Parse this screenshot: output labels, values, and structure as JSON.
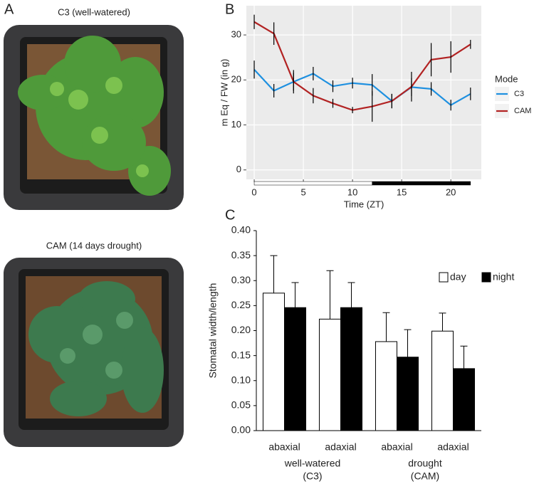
{
  "figure": {
    "panel_labels": [
      "A",
      "B",
      "C"
    ],
    "photos": [
      {
        "title": "C3 (well-watered)"
      },
      {
        "title": "CAM (14 days drought)"
      }
    ]
  },
  "chart_data": [
    {
      "type": "line",
      "x_label": "Time (ZT)",
      "y_label": "m Eq / FW (in g)",
      "x": [
        0,
        2,
        4,
        6,
        8,
        10,
        12,
        14,
        16,
        18,
        20,
        22
      ],
      "series": [
        {
          "name": "C3",
          "color": "#1e90e0",
          "values": [
            22.3,
            17.6,
            19.6,
            21.4,
            18.6,
            19.3,
            18.9,
            15.3,
            18.4,
            18.0,
            14.4,
            16.9
          ],
          "errors": [
            2.0,
            1.5,
            2.0,
            1.5,
            1.3,
            1.2,
            2.4,
            1.6,
            2.0,
            1.5,
            1.2,
            1.4
          ]
        },
        {
          "name": "CAM",
          "color": "#b22222",
          "values": [
            32.9,
            30.3,
            19.6,
            16.5,
            14.8,
            13.3,
            14.1,
            15.3,
            18.5,
            24.5,
            25.1,
            27.9
          ],
          "errors": [
            1.6,
            2.5,
            2.6,
            1.7,
            1.0,
            0.7,
            3.4,
            1.6,
            3.3,
            3.7,
            3.5,
            1.0
          ]
        }
      ],
      "light_periods": [
        {
          "start": 0,
          "end": 12,
          "color": "#ffffff"
        },
        {
          "start": 12,
          "end": 22,
          "color": "#000000"
        }
      ],
      "legend_title": "Mode",
      "legend": "right",
      "grid": true,
      "xlim": [
        -0.8,
        23.1
      ],
      "xticks": [
        0,
        5,
        10,
        15,
        20
      ],
      "ylim": [
        -2.1,
        36.5
      ],
      "yticks": [
        0,
        10,
        20,
        30
      ]
    },
    {
      "type": "bar",
      "y_label": "Stomatal width/length",
      "categories": [
        "abaxial",
        "adaxial",
        "abaxial",
        "adaxial"
      ],
      "groups": [
        [
          "well-watered",
          "(C3)"
        ],
        [
          "drought",
          "(CAM)"
        ]
      ],
      "series": [
        {
          "name": "day",
          "color": "#ffffff",
          "values": [
            0.275,
            0.223,
            0.178,
            0.199
          ],
          "errors": [
            0.075,
            0.097,
            0.058,
            0.036
          ]
        },
        {
          "name": "night",
          "color": "#000000",
          "values": [
            0.246,
            0.246,
            0.147,
            0.124
          ],
          "errors": [
            0.05,
            0.05,
            0.055,
            0.045
          ]
        }
      ],
      "legend": "top-right",
      "ylim": [
        0,
        0.4
      ],
      "yticks": [
        {
          "value": 0,
          "label": "0.00"
        },
        {
          "value": 0.05,
          "label": "0.05"
        },
        {
          "value": 0.1,
          "label": "0.10"
        },
        {
          "value": 0.15,
          "label": "0.15"
        },
        {
          "value": 0.2,
          "label": "0.20"
        },
        {
          "value": 0.25,
          "label": "0.25"
        },
        {
          "value": 0.3,
          "label": "0.30"
        },
        {
          "value": 0.35,
          "label": "0.35"
        },
        {
          "value": 0.4,
          "label": "0.40"
        }
      ]
    }
  ]
}
